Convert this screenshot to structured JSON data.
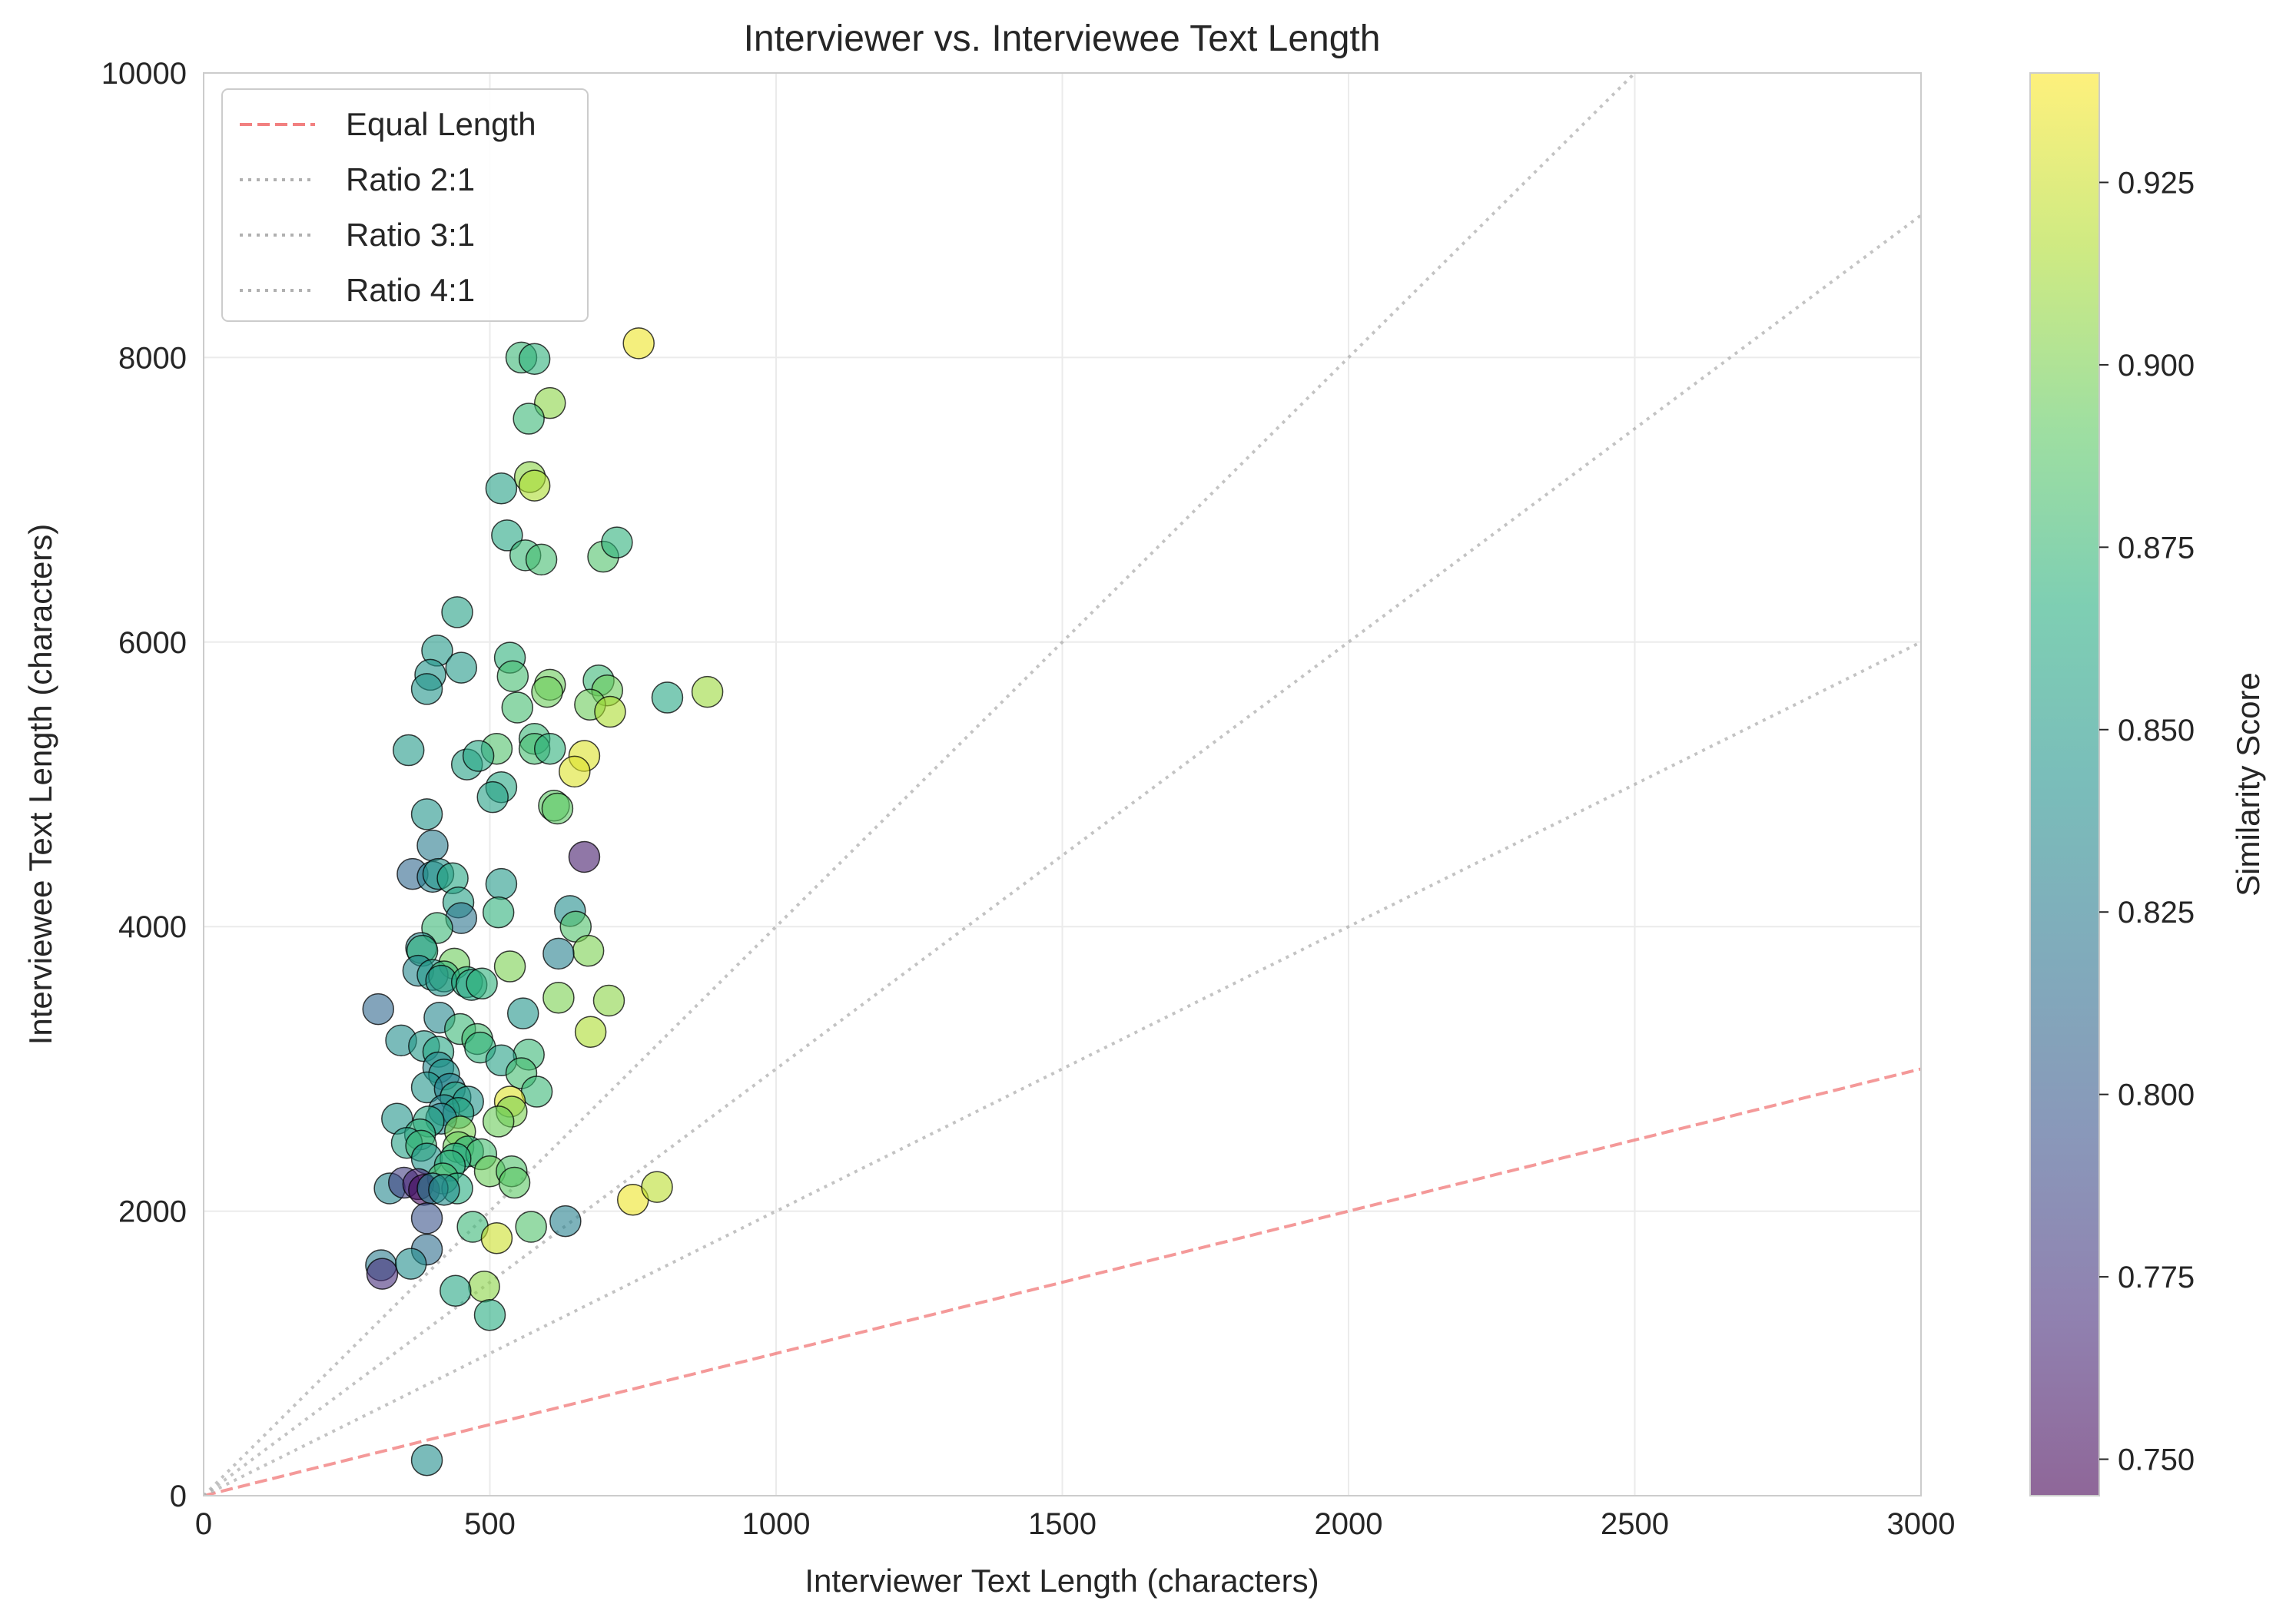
{
  "chart_data": {
    "type": "scatter",
    "title": "Interviewer vs. Interviewee Text Length",
    "xlabel": "Interviewer Text Length (characters)",
    "ylabel": "Interviewee Text Length (characters)",
    "xlim": [
      0,
      3000
    ],
    "ylim": [
      0,
      10000
    ],
    "x_ticks": [
      0,
      500,
      1000,
      1500,
      2000,
      2500,
      3000
    ],
    "y_ticks": [
      0,
      2000,
      4000,
      6000,
      8000,
      10000
    ],
    "grid": true,
    "legend_position": "top-left",
    "legend": [
      {
        "label": "Equal Length",
        "style": "dashed",
        "color": "#f28080"
      },
      {
        "label": "Ratio 2:1",
        "style": "dotted",
        "color": "#b0b0b0"
      },
      {
        "label": "Ratio 3:1",
        "style": "dotted",
        "color": "#b0b0b0"
      },
      {
        "label": "Ratio 4:1",
        "style": "dotted",
        "color": "#b0b0b0"
      }
    ],
    "reference_lines": [
      {
        "name": "Equal Length",
        "ratio": 1
      },
      {
        "name": "Ratio 2:1",
        "ratio": 2
      },
      {
        "name": "Ratio 3:1",
        "ratio": 3
      },
      {
        "name": "Ratio 4:1",
        "ratio": 4
      }
    ],
    "colorbar": {
      "label": "Similarity Score",
      "colormap": "viridis",
      "min": 0.745,
      "max": 0.94,
      "ticks": [
        0.75,
        0.775,
        0.8,
        0.825,
        0.85,
        0.875,
        0.9,
        0.925
      ],
      "tick_labels": [
        "0.750",
        "0.775",
        "0.800",
        "0.825",
        "0.850",
        "0.875",
        "0.900",
        "0.925"
      ]
    },
    "points": [
      [
        760,
        8100,
        0.935
      ],
      [
        555,
        8000,
        0.875
      ],
      [
        578,
        7990,
        0.87
      ],
      [
        605,
        7680,
        0.905
      ],
      [
        568,
        7570,
        0.875
      ],
      [
        570,
        7160,
        0.905
      ],
      [
        578,
        7100,
        0.915
      ],
      [
        520,
        7080,
        0.855
      ],
      [
        530,
        6750,
        0.86
      ],
      [
        562,
        6610,
        0.875
      ],
      [
        590,
        6580,
        0.88
      ],
      [
        698,
        6600,
        0.885
      ],
      [
        722,
        6700,
        0.87
      ],
      [
        443,
        6210,
        0.855
      ],
      [
        408,
        5940,
        0.85
      ],
      [
        396,
        5770,
        0.845
      ],
      [
        450,
        5820,
        0.85
      ],
      [
        390,
        5670,
        0.845
      ],
      [
        535,
        5890,
        0.87
      ],
      [
        540,
        5760,
        0.88
      ],
      [
        605,
        5700,
        0.895
      ],
      [
        600,
        5650,
        0.895
      ],
      [
        690,
        5730,
        0.875
      ],
      [
        705,
        5660,
        0.895
      ],
      [
        675,
        5560,
        0.895
      ],
      [
        710,
        5510,
        0.915
      ],
      [
        810,
        5610,
        0.86
      ],
      [
        880,
        5650,
        0.91
      ],
      [
        548,
        5540,
        0.88
      ],
      [
        578,
        5320,
        0.875
      ],
      [
        578,
        5250,
        0.88
      ],
      [
        605,
        5250,
        0.87
      ],
      [
        512,
        5250,
        0.885
      ],
      [
        358,
        5240,
        0.85
      ],
      [
        460,
        5140,
        0.855
      ],
      [
        480,
        5200,
        0.86
      ],
      [
        520,
        4980,
        0.86
      ],
      [
        505,
        4910,
        0.855
      ],
      [
        665,
        5200,
        0.93
      ],
      [
        648,
        5090,
        0.93
      ],
      [
        612,
        4850,
        0.89
      ],
      [
        618,
        4830,
        0.89
      ],
      [
        390,
        4790,
        0.845
      ],
      [
        400,
        4570,
        0.825
      ],
      [
        665,
        4490,
        0.76
      ],
      [
        365,
        4370,
        0.81
      ],
      [
        400,
        4350,
        0.83
      ],
      [
        410,
        4370,
        0.845
      ],
      [
        435,
        4340,
        0.86
      ],
      [
        520,
        4300,
        0.85
      ],
      [
        445,
        4170,
        0.855
      ],
      [
        515,
        4100,
        0.87
      ],
      [
        640,
        4110,
        0.84
      ],
      [
        450,
        4060,
        0.82
      ],
      [
        650,
        4000,
        0.885
      ],
      [
        408,
        3990,
        0.875
      ],
      [
        380,
        3850,
        0.835
      ],
      [
        382,
        3830,
        0.87
      ],
      [
        672,
        3830,
        0.9
      ],
      [
        620,
        3810,
        0.83
      ],
      [
        438,
        3740,
        0.895
      ],
      [
        535,
        3720,
        0.9
      ],
      [
        375,
        3690,
        0.835
      ],
      [
        400,
        3660,
        0.85
      ],
      [
        420,
        3650,
        0.875
      ],
      [
        415,
        3620,
        0.845
      ],
      [
        460,
        3610,
        0.865
      ],
      [
        468,
        3590,
        0.86
      ],
      [
        486,
        3600,
        0.87
      ],
      [
        620,
        3500,
        0.9
      ],
      [
        708,
        3480,
        0.905
      ],
      [
        305,
        3420,
        0.81
      ],
      [
        558,
        3390,
        0.845
      ],
      [
        412,
        3360,
        0.835
      ],
      [
        448,
        3280,
        0.875
      ],
      [
        676,
        3260,
        0.915
      ],
      [
        345,
        3200,
        0.84
      ],
      [
        478,
        3210,
        0.88
      ],
      [
        385,
        3160,
        0.85
      ],
      [
        483,
        3150,
        0.87
      ],
      [
        410,
        3120,
        0.86
      ],
      [
        568,
        3100,
        0.875
      ],
      [
        520,
        3060,
        0.855
      ],
      [
        410,
        3010,
        0.835
      ],
      [
        420,
        2960,
        0.845
      ],
      [
        555,
        2970,
        0.88
      ],
      [
        390,
        2870,
        0.845
      ],
      [
        430,
        2860,
        0.83
      ],
      [
        582,
        2840,
        0.875
      ],
      [
        440,
        2800,
        0.86
      ],
      [
        462,
        2770,
        0.845
      ],
      [
        535,
        2770,
        0.93
      ],
      [
        420,
        2710,
        0.835
      ],
      [
        445,
        2690,
        0.86
      ],
      [
        538,
        2700,
        0.9
      ],
      [
        515,
        2630,
        0.895
      ],
      [
        338,
        2650,
        0.845
      ],
      [
        415,
        2650,
        0.835
      ],
      [
        393,
        2630,
        0.86
      ],
      [
        448,
        2560,
        0.9
      ],
      [
        378,
        2540,
        0.87
      ],
      [
        355,
        2480,
        0.855
      ],
      [
        380,
        2460,
        0.875
      ],
      [
        445,
        2450,
        0.895
      ],
      [
        462,
        2420,
        0.87
      ],
      [
        485,
        2400,
        0.88
      ],
      [
        390,
        2370,
        0.845
      ],
      [
        440,
        2370,
        0.865
      ],
      [
        430,
        2320,
        0.87
      ],
      [
        500,
        2280,
        0.895
      ],
      [
        418,
        2230,
        0.88
      ],
      [
        538,
        2280,
        0.885
      ],
      [
        543,
        2200,
        0.89
      ],
      [
        443,
        2160,
        0.865
      ],
      [
        325,
        2160,
        0.835
      ],
      [
        350,
        2200,
        0.78
      ],
      [
        375,
        2190,
        0.765
      ],
      [
        385,
        2150,
        0.75
      ],
      [
        400,
        2160,
        0.83
      ],
      [
        420,
        2150,
        0.84
      ],
      [
        750,
        2080,
        0.935
      ],
      [
        792,
        2170,
        0.92
      ],
      [
        632,
        1930,
        0.83
      ],
      [
        390,
        1950,
        0.795
      ],
      [
        470,
        1890,
        0.875
      ],
      [
        572,
        1890,
        0.885
      ],
      [
        512,
        1810,
        0.925
      ],
      [
        390,
        1730,
        0.815
      ],
      [
        310,
        1620,
        0.825
      ],
      [
        362,
        1630,
        0.84
      ],
      [
        312,
        1560,
        0.77
      ],
      [
        490,
        1470,
        0.905
      ],
      [
        440,
        1440,
        0.86
      ],
      [
        500,
        1270,
        0.865
      ],
      [
        390,
        250,
        0.84
      ]
    ]
  }
}
